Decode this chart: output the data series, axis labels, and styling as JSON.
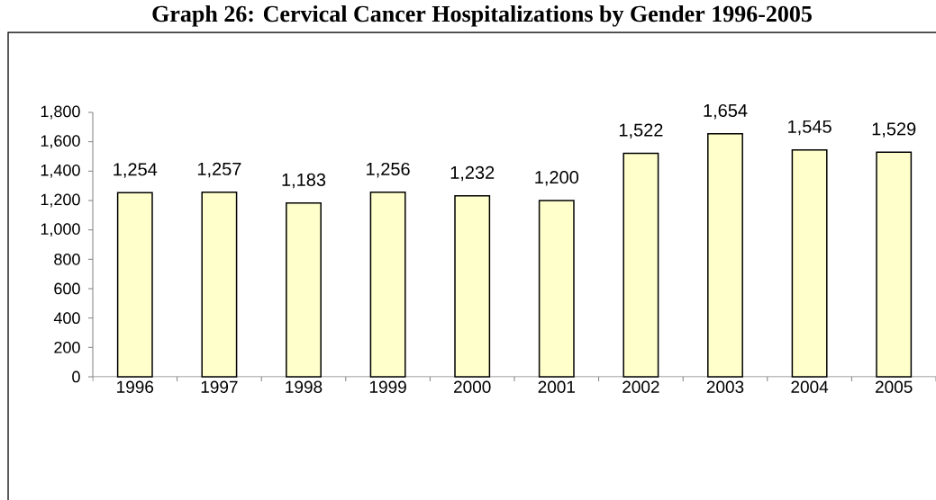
{
  "chart_data": {
    "type": "bar",
    "title": "Graph 26: Cervical Cancer Hospitalizations by Gender 1996-2005",
    "categories": [
      "1996",
      "1997",
      "1998",
      "1999",
      "2000",
      "2001",
      "2002",
      "2003",
      "2004",
      "2005"
    ],
    "values": [
      1254,
      1257,
      1183,
      1256,
      1232,
      1200,
      1522,
      1654,
      1545,
      1529
    ],
    "value_labels": [
      "1,254",
      "1,257",
      "1,183",
      "1,256",
      "1,232",
      "1,200",
      "1,522",
      "1,654",
      "1,545",
      "1,529"
    ],
    "color": "#ffffcc",
    "ylim": [
      0,
      1800
    ],
    "yticks": [
      0,
      200,
      400,
      600,
      800,
      {
        "value": 1000,
        "label": "1,000"
      },
      {
        "value": 1200,
        "label": "1,200"
      },
      {
        "value": 1400,
        "label": "1,400"
      },
      {
        "value": 1600,
        "label": "1,600"
      },
      {
        "value": 1800,
        "label": "1,800"
      }
    ]
  }
}
